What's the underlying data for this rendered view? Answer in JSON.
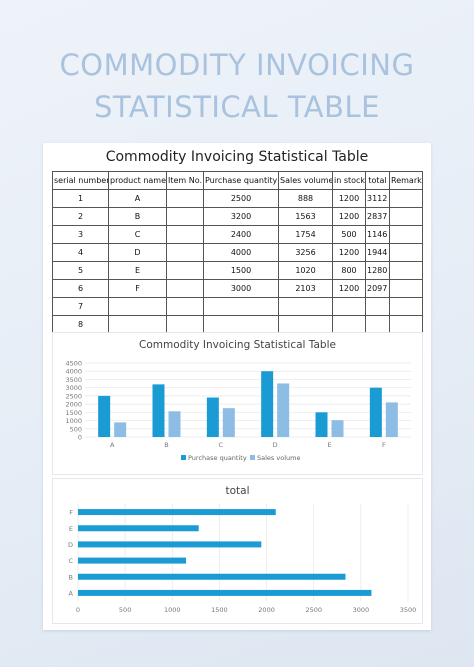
{
  "header": {
    "title_line1": "COMMODITY INVOICING",
    "title_line2": "STATISTICAL TABLE"
  },
  "sheet": {
    "title": "Commodity Invoicing Statistical Table",
    "columns": [
      "serial number",
      "product name",
      "Item No.",
      "Purchase quantity",
      "Sales volume",
      "in stock",
      "total",
      "Remark"
    ],
    "rows": [
      [
        "1",
        "A",
        "",
        "2500",
        "888",
        "1200",
        "3112",
        ""
      ],
      [
        "2",
        "B",
        "",
        "3200",
        "1563",
        "1200",
        "2837",
        ""
      ],
      [
        "3",
        "C",
        "",
        "2400",
        "1754",
        "500",
        "1146",
        ""
      ],
      [
        "4",
        "D",
        "",
        "4000",
        "3256",
        "1200",
        "1944",
        ""
      ],
      [
        "5",
        "E",
        "",
        "1500",
        "1020",
        "800",
        "1280",
        ""
      ],
      [
        "6",
        "F",
        "",
        "3000",
        "2103",
        "1200",
        "2097",
        ""
      ],
      [
        "7",
        "",
        "",
        "",
        "",
        "",
        "",
        ""
      ],
      [
        "8",
        "",
        "",
        "",
        "",
        "",
        "",
        ""
      ]
    ]
  },
  "chart_data": [
    {
      "type": "bar",
      "title": "Commodity Invoicing Statistical Table",
      "categories": [
        "A",
        "B",
        "C",
        "D",
        "E",
        "F"
      ],
      "series": [
        {
          "name": "Purchase quantity",
          "values": [
            2500,
            3200,
            2400,
            4000,
            1500,
            3000
          ],
          "color": "#1a9bd3"
        },
        {
          "name": "Sales volume",
          "values": [
            888,
            1563,
            1754,
            3256,
            1020,
            2103
          ],
          "color": "#8dbde4"
        }
      ],
      "ylim": [
        0,
        4500
      ],
      "yticks": [
        0,
        500,
        1000,
        1500,
        2000,
        2500,
        3000,
        3500,
        4000,
        4500
      ],
      "legend": "bottom",
      "grid": true
    },
    {
      "type": "bar",
      "orientation": "horizontal",
      "title": "total",
      "categories": [
        "A",
        "B",
        "C",
        "D",
        "E",
        "F"
      ],
      "values": [
        3112,
        2837,
        1146,
        1944,
        1280,
        2097
      ],
      "color": "#1a9bd3",
      "xlim": [
        0,
        3500
      ],
      "xticks": [
        0,
        500,
        1000,
        1500,
        2000,
        2500,
        3000,
        3500
      ],
      "grid": true
    }
  ]
}
